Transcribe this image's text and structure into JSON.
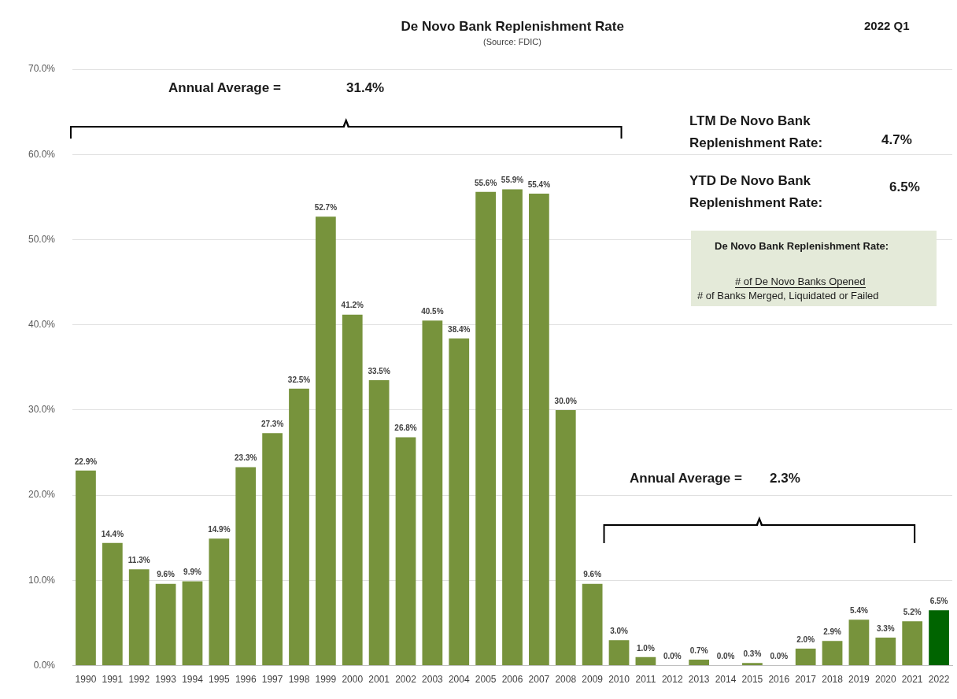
{
  "chart_data": {
    "type": "bar",
    "title": "De Novo Bank Replenishment Rate",
    "subtitle": "(Source: FDIC)",
    "categories": [
      "1990",
      "1991",
      "1992",
      "1993",
      "1994",
      "1995",
      "1996",
      "1997",
      "1998",
      "1999",
      "2000",
      "2001",
      "2002",
      "2003",
      "2004",
      "2005",
      "2006",
      "2007",
      "2008",
      "2009",
      "2010",
      "2011",
      "2012",
      "2013",
      "2014",
      "2015",
      "2016",
      "2017",
      "2018",
      "2019",
      "2020",
      "2021",
      "2022"
    ],
    "values": [
      22.9,
      14.4,
      11.3,
      9.6,
      9.9,
      14.9,
      23.3,
      27.3,
      32.5,
      52.7,
      41.2,
      33.5,
      26.8,
      40.5,
      38.4,
      55.6,
      55.9,
      55.4,
      30.0,
      9.6,
      3.0,
      1.0,
      0.0,
      0.7,
      0.0,
      0.3,
      0.0,
      2.0,
      2.9,
      5.4,
      3.3,
      5.2,
      6.5
    ],
    "value_labels": [
      "22.9%",
      "14.4%",
      "11.3%",
      "9.6%",
      "9.9%",
      "14.9%",
      "23.3%",
      "27.3%",
      "32.5%",
      "52.7%",
      "41.2%",
      "33.5%",
      "26.8%",
      "40.5%",
      "38.4%",
      "55.6%",
      "55.9%",
      "55.4%",
      "30.0%",
      "9.6%",
      "3.0%",
      "1.0%",
      "0.0%",
      "0.7%",
      "0.0%",
      "0.3%",
      "0.0%",
      "2.0%",
      "2.9%",
      "5.4%",
      "3.3%",
      "5.2%",
      "6.5%"
    ],
    "colors": [
      "#77933c",
      "#77933c",
      "#77933c",
      "#77933c",
      "#77933c",
      "#77933c",
      "#77933c",
      "#77933c",
      "#77933c",
      "#77933c",
      "#77933c",
      "#77933c",
      "#77933c",
      "#77933c",
      "#77933c",
      "#77933c",
      "#77933c",
      "#77933c",
      "#77933c",
      "#77933c",
      "#77933c",
      "#77933c",
      "#77933c",
      "#77933c",
      "#77933c",
      "#77933c",
      "#77933c",
      "#77933c",
      "#77933c",
      "#77933c",
      "#77933c",
      "#77933c",
      "#006400"
    ],
    "ylim": [
      0,
      70
    ],
    "yticks": [
      {
        "value": 0,
        "label": "0.0%"
      },
      {
        "value": 10,
        "label": "10.0%"
      },
      {
        "value": 20,
        "label": "20.0%"
      },
      {
        "value": 30,
        "label": "30.0%"
      },
      {
        "value": 40,
        "label": "40.0%"
      },
      {
        "value": 50,
        "label": "50.0%"
      },
      {
        "value": 60,
        "label": "60.0%"
      },
      {
        "value": 70,
        "label": "70.0%"
      }
    ],
    "grid": "y",
    "legend": false,
    "annotations": [
      "2022 Q1",
      "Annual Average =",
      "31.4%",
      "LTM De Novo Bank Replenishment Rate:",
      "4.7%",
      "YTD De Novo Bank Replenishment Rate:",
      "6.5%",
      "De Novo Bank Replenishment Rate:",
      "# of De Novo Banks Opened",
      "# of Banks Merged, Liquidated or Failed",
      "Annual Average =",
      "2.3%"
    ]
  }
}
